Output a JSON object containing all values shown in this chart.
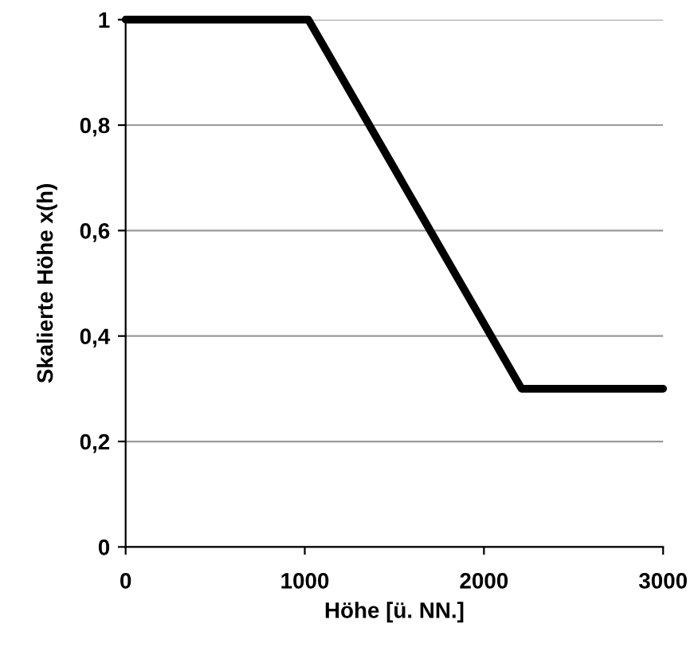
{
  "chart_data": {
    "type": "line",
    "xlabel": "Höhe [ü. NN.]",
    "ylabel": "Skalierte Höhe x(h)",
    "series": [
      {
        "x": [
          0,
          1020,
          2210,
          3000
        ],
        "values": [
          1,
          1,
          0.3,
          0.3
        ],
        "color": "#000000"
      }
    ],
    "xlim": [
      0,
      3000
    ],
    "xticks": [
      0,
      1000,
      2000,
      3000
    ],
    "ylim": [
      0,
      1
    ],
    "yticks": [
      0,
      {
        "value": 0.2,
        "label": "0,2"
      },
      {
        "value": 0.4,
        "label": "0,4"
      },
      {
        "value": 0.6,
        "label": "0,6"
      },
      {
        "value": 0.8,
        "label": "0,8"
      },
      1
    ],
    "grid": "y",
    "marker": "none",
    "line_style": "solid",
    "legend": false
  }
}
